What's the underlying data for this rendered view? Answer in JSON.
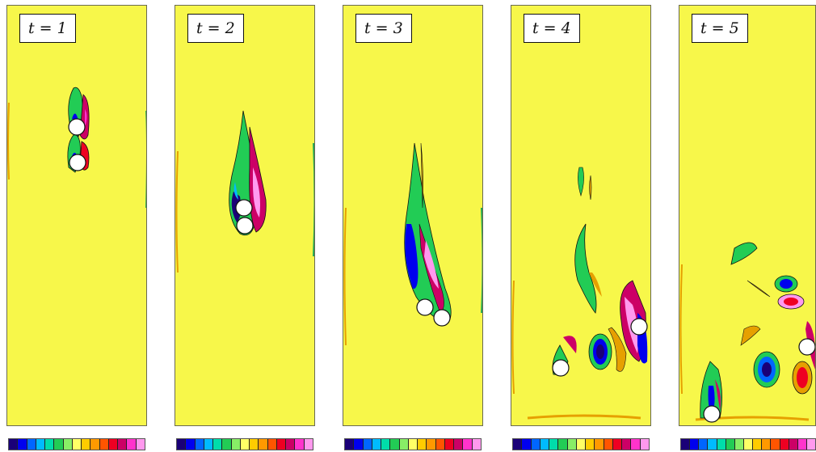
{
  "panels": [
    {
      "label": "t = 1"
    },
    {
      "label": "t = 2"
    },
    {
      "label": "t = 3"
    },
    {
      "label": "t = 4"
    },
    {
      "label": "t = 5"
    }
  ],
  "colormap": [
    "#1a0078",
    "#0000ee",
    "#0066ff",
    "#00bbff",
    "#00ddaa",
    "#22cc55",
    "#88ee66",
    "#ffff66",
    "#ffcc00",
    "#ff9900",
    "#ff5500",
    "#ee0022",
    "#cc0066",
    "#ff33cc",
    "#ff99ee"
  ],
  "colors": {
    "background": "#f7f74a",
    "particle": "#ffffff",
    "outline": "#111111"
  }
}
